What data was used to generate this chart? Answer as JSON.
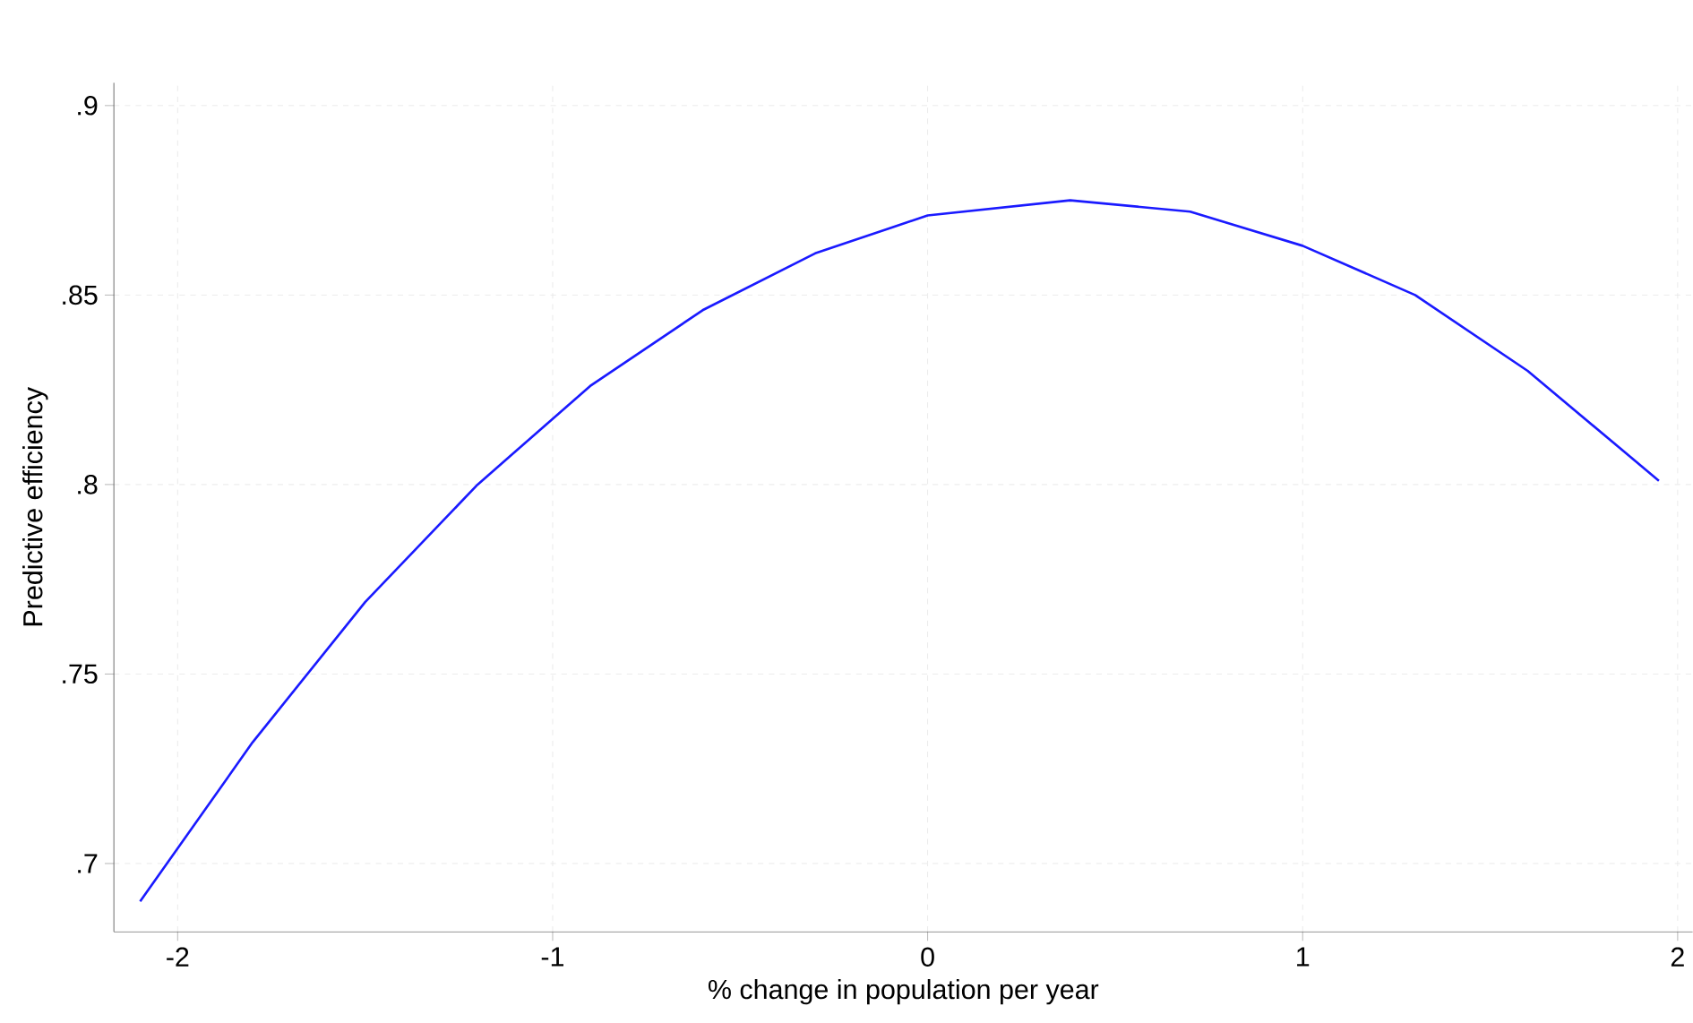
{
  "chart_data": {
    "type": "line",
    "xlabel": "% change in population per year",
    "ylabel": "Predictive efficiency",
    "x": [
      -2.1,
      -1.8,
      -1.5,
      -1.2,
      -0.9,
      -0.6,
      -0.3,
      0,
      0.38,
      0.7,
      1.0,
      1.3,
      1.6,
      1.95
    ],
    "series": [
      {
        "color": "#1a1aff",
        "values": [
          0.69,
          0.732,
          0.769,
          0.8,
          0.826,
          0.846,
          0.861,
          0.871,
          0.875,
          0.872,
          0.863,
          0.85,
          0.83,
          0.801
        ]
      }
    ],
    "xlim": [
      -2.17,
      2.04
    ],
    "ylim": [
      0.682,
      0.906
    ],
    "xticks": [
      -2,
      -1,
      0,
      1,
      2
    ],
    "yticks": [
      {
        "value": 0.7,
        "label": ".7"
      },
      {
        "value": 0.75,
        "label": ".75"
      },
      {
        "value": 0.8,
        "label": ".8"
      },
      {
        "value": 0.85,
        "label": ".85"
      },
      {
        "value": 0.9,
        "label": ".9"
      }
    ],
    "grid": true,
    "marker": "none",
    "line_style": "solid"
  }
}
